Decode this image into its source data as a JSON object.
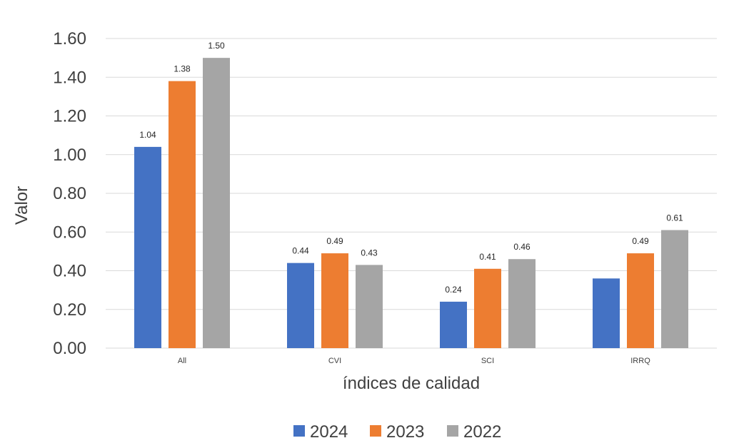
{
  "chart_data": {
    "type": "bar",
    "categories": [
      "All",
      "CVI",
      "SCI",
      "IRRQ"
    ],
    "series": [
      {
        "name": "2024",
        "color": "#4472C4",
        "values": [
          1.04,
          0.44,
          0.24,
          0.36
        ],
        "labels": [
          "1.04",
          "0.44",
          "0.24",
          ""
        ]
      },
      {
        "name": "2023",
        "color": "#ED7D31",
        "values": [
          1.38,
          0.49,
          0.41,
          0.49
        ],
        "labels": [
          "1.38",
          "0.49",
          "0.41",
          "0.49"
        ]
      },
      {
        "name": "2022",
        "color": "#A5A5A5",
        "values": [
          1.5,
          0.43,
          0.46,
          0.61
        ],
        "labels": [
          "1.50",
          "0.43",
          "0.46",
          "0.61"
        ]
      }
    ],
    "xlabel": "índices de calidad",
    "ylabel": "Valor",
    "ylim": [
      0,
      1.6
    ],
    "yticks": [
      "0.00",
      "0.20",
      "0.40",
      "0.60",
      "0.80",
      "1.00",
      "1.20",
      "1.40",
      "1.60"
    ],
    "grid": true,
    "legend": "bottom"
  }
}
